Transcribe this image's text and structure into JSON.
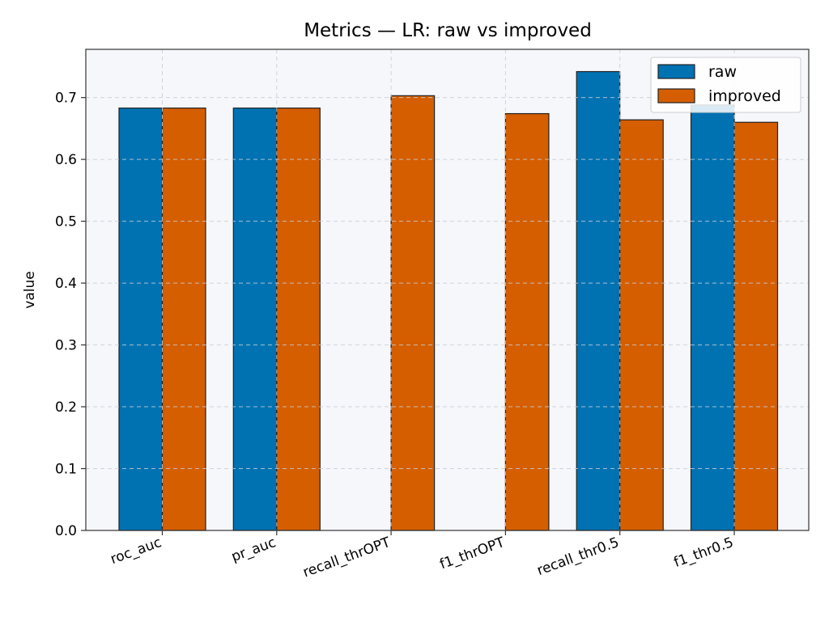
{
  "chart_data": {
    "type": "bar",
    "title": "Metrics — LR: raw vs improved",
    "xlabel": "",
    "ylabel": "value",
    "categories": [
      "roc_auc",
      "pr_auc",
      "recall_thrOPT",
      "f1_thrOPT",
      "recall_thr0.5",
      "f1_thr0.5"
    ],
    "series": [
      {
        "name": "raw",
        "color": "#0072b2",
        "values": [
          0.683,
          0.683,
          null,
          null,
          0.742,
          0.688
        ]
      },
      {
        "name": "improved",
        "color": "#d55e00",
        "values": [
          0.683,
          0.683,
          0.703,
          0.674,
          0.664,
          0.66
        ]
      }
    ],
    "yticks": [
      "0.0",
      "0.1",
      "0.2",
      "0.3",
      "0.4",
      "0.5",
      "0.6",
      "0.7"
    ],
    "ylim": [
      0,
      0.778
    ],
    "grid": true,
    "legend_position": "top-right",
    "plot_background": "#f5f7fb",
    "bar_edge_color": "#222222"
  }
}
